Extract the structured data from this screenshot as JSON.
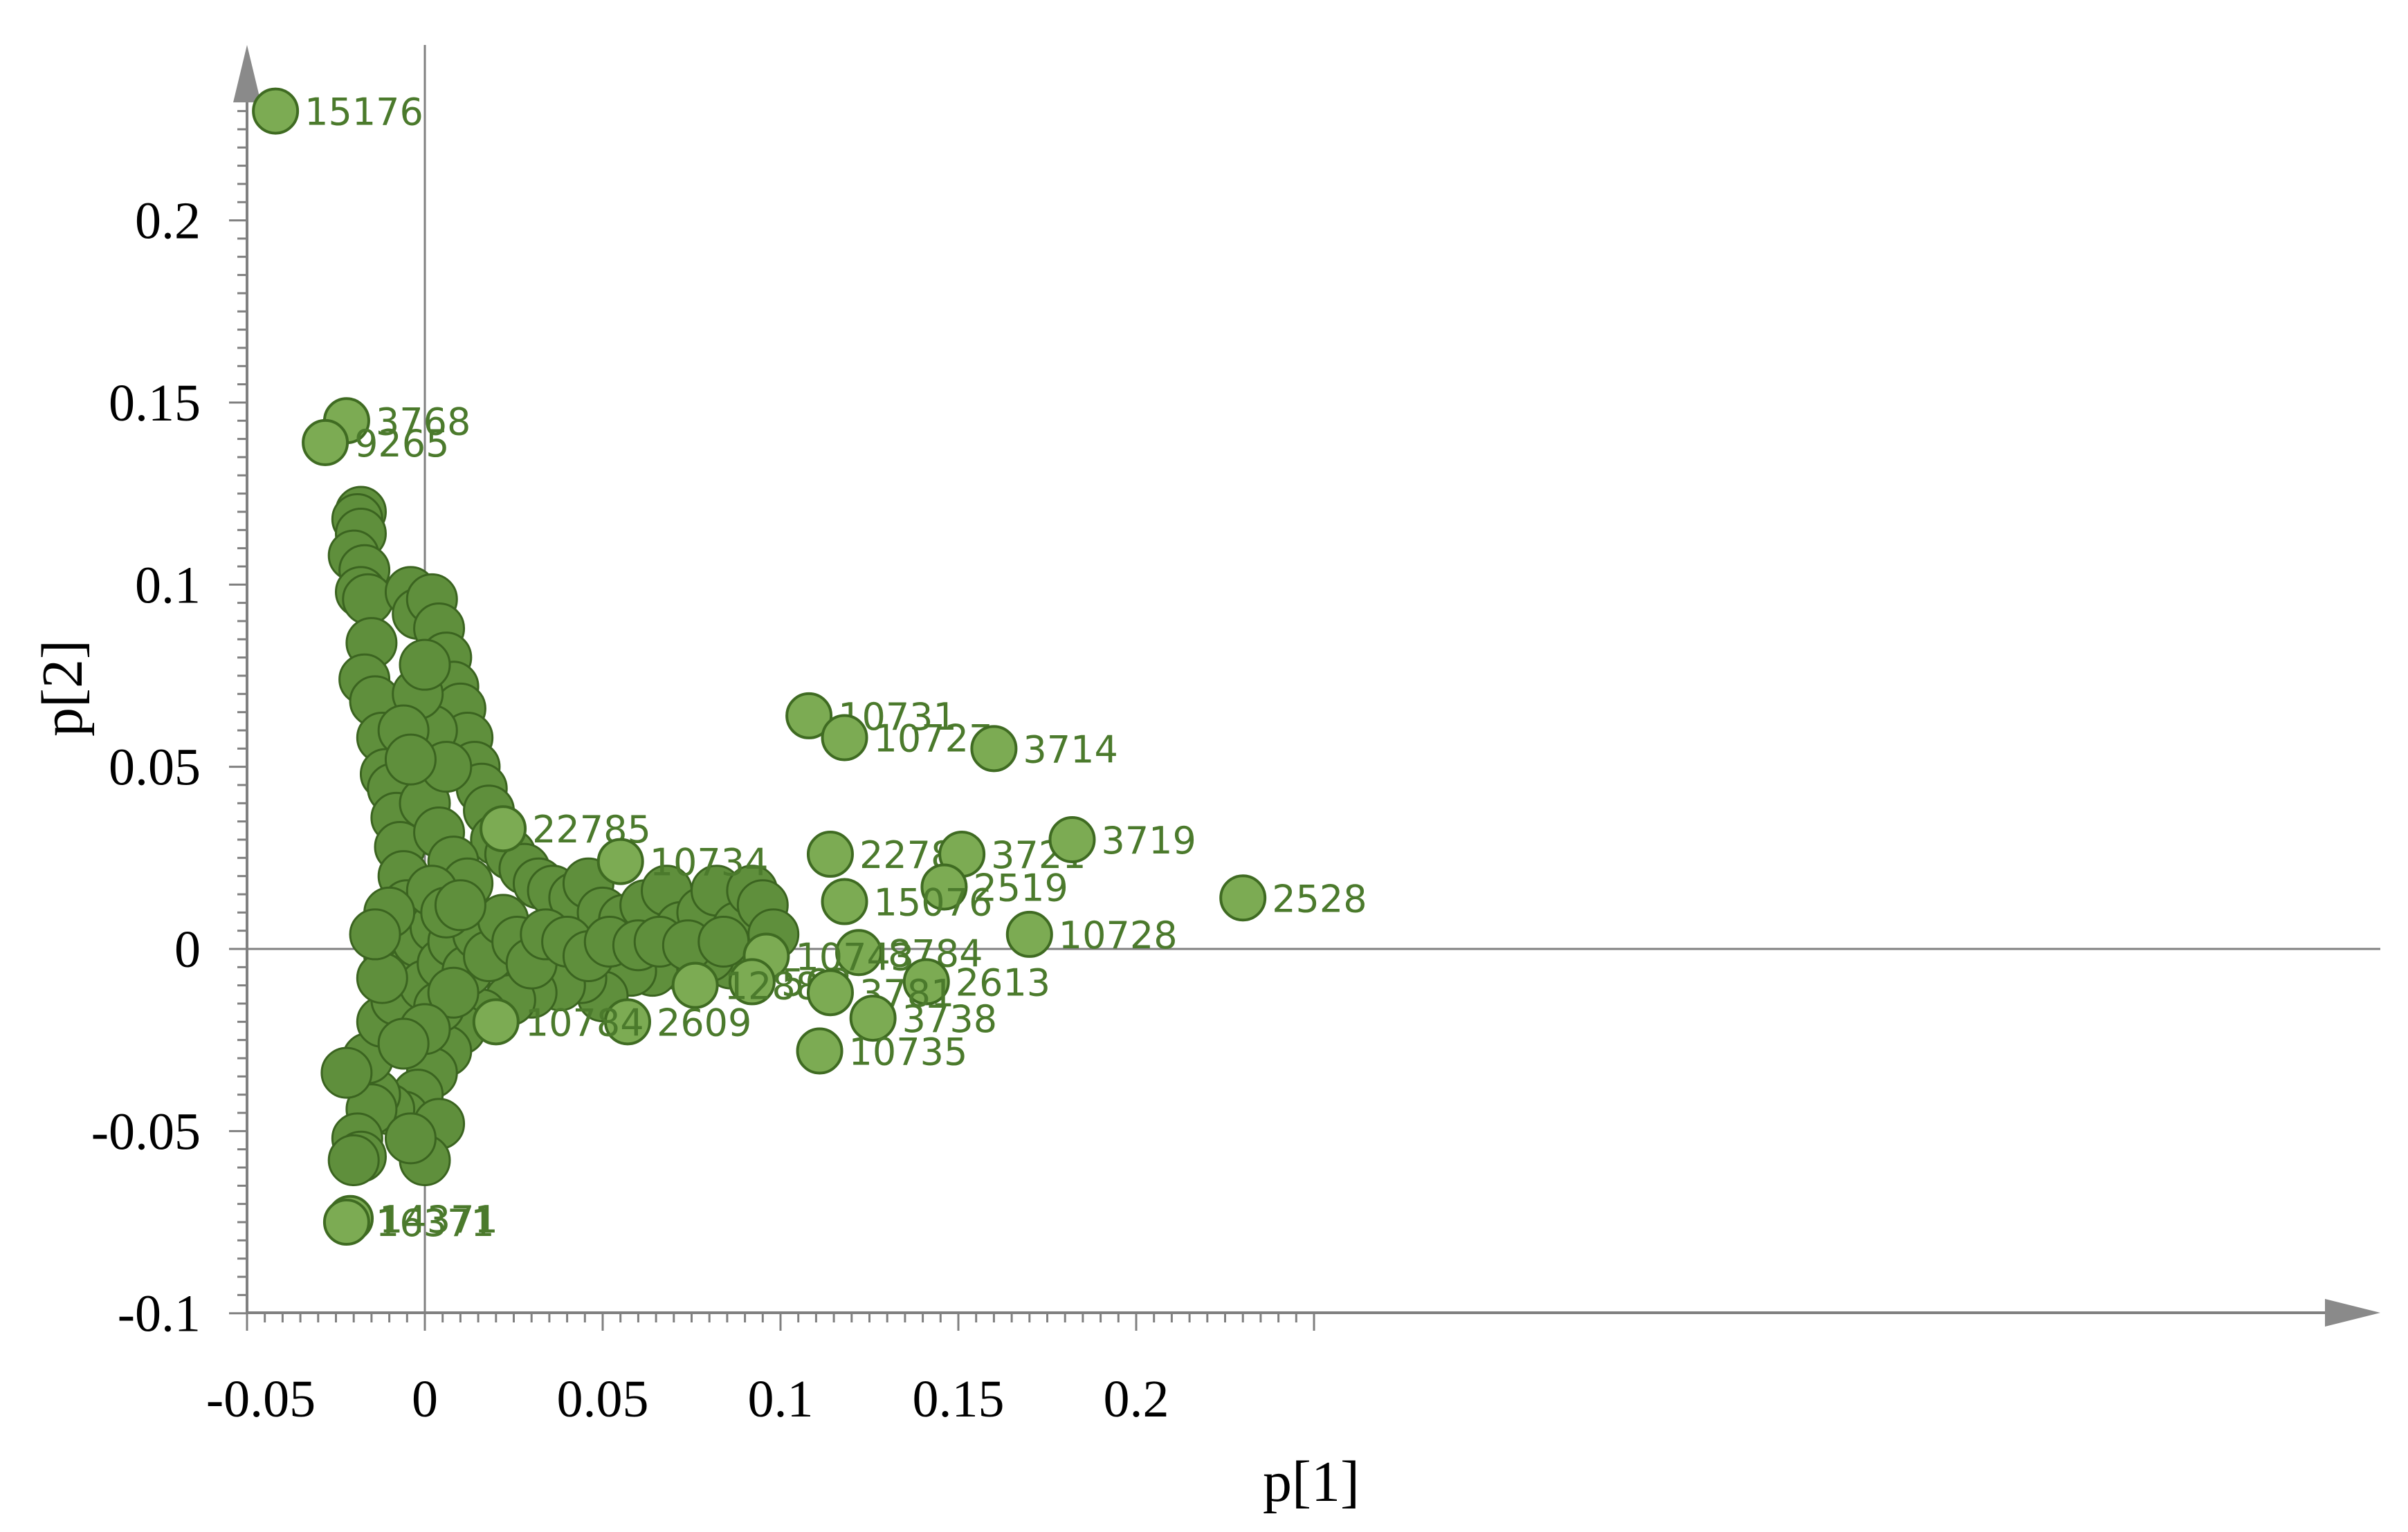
{
  "chart_data": {
    "type": "scatter",
    "xlabel": "p[1]",
    "ylabel": "p[2]",
    "xlim": [
      -0.05,
      0.25
    ],
    "ylim": [
      -0.1,
      0.24
    ],
    "xticks": [
      -0.05,
      0,
      0.05,
      0.1,
      0.15,
      0.2
    ],
    "yticks": [
      -0.1,
      -0.05,
      0,
      0.05,
      0.1,
      0.15,
      0.2
    ],
    "xtick_labels": [
      "-0.05",
      "0",
      "0.05",
      "0.1",
      "0.15",
      "0.2"
    ],
    "ytick_labels": [
      "-0.1",
      "-0.05",
      "0",
      "0.05",
      "0.1",
      "0.15",
      "0.2"
    ],
    "grid": false,
    "point_color": "#7cab53",
    "point_edge_color": "#3f6b22",
    "label_color": "#4b7a2c",
    "labeled_points": [
      {
        "label": "15176",
        "x": -0.042,
        "y": 0.23
      },
      {
        "label": "3768",
        "x": -0.022,
        "y": 0.145
      },
      {
        "label": "9265",
        "x": -0.028,
        "y": 0.139
      },
      {
        "label": "10731",
        "x": 0.108,
        "y": 0.064
      },
      {
        "label": "10727",
        "x": 0.118,
        "y": 0.058
      },
      {
        "label": "3714",
        "x": 0.16,
        "y": 0.055
      },
      {
        "label": "22785",
        "x": 0.022,
        "y": 0.033
      },
      {
        "label": "10734",
        "x": 0.055,
        "y": 0.024
      },
      {
        "label": "22787",
        "x": 0.114,
        "y": 0.026
      },
      {
        "label": "3721",
        "x": 0.151,
        "y": 0.026
      },
      {
        "label": "3719",
        "x": 0.182,
        "y": 0.03
      },
      {
        "label": "2519",
        "x": 0.146,
        "y": 0.017
      },
      {
        "label": "15076",
        "x": 0.118,
        "y": 0.013
      },
      {
        "label": "2528",
        "x": 0.23,
        "y": 0.014
      },
      {
        "label": "10728",
        "x": 0.17,
        "y": 0.004
      },
      {
        "label": "8784",
        "x": 0.122,
        "y": -0.001
      },
      {
        "label": "10743",
        "x": 0.096,
        "y": -0.002
      },
      {
        "label": "2613",
        "x": 0.141,
        "y": -0.009
      },
      {
        "label": "562",
        "x": 0.092,
        "y": -0.009
      },
      {
        "label": "12885",
        "x": 0.076,
        "y": -0.01
      },
      {
        "label": "3781",
        "x": 0.114,
        "y": -0.012
      },
      {
        "label": "3738",
        "x": 0.126,
        "y": -0.019
      },
      {
        "label": "2609",
        "x": 0.057,
        "y": -0.02
      },
      {
        "label": "10784",
        "x": 0.02,
        "y": -0.02
      },
      {
        "label": "10735",
        "x": 0.111,
        "y": -0.028
      },
      {
        "label": "14371",
        "x": -0.021,
        "y": -0.074
      },
      {
        "label": "16371",
        "x": -0.022,
        "y": -0.075
      }
    ],
    "unlabeled_points": [
      {
        "x": -0.018,
        "y": 0.12
      },
      {
        "x": -0.019,
        "y": 0.118
      },
      {
        "x": -0.018,
        "y": 0.114
      },
      {
        "x": -0.02,
        "y": 0.108
      },
      {
        "x": -0.017,
        "y": 0.104
      },
      {
        "x": -0.018,
        "y": 0.098
      },
      {
        "x": -0.016,
        "y": 0.096
      },
      {
        "x": -0.015,
        "y": 0.084
      },
      {
        "x": -0.017,
        "y": 0.074
      },
      {
        "x": -0.014,
        "y": 0.068
      },
      {
        "x": -0.012,
        "y": 0.058
      },
      {
        "x": -0.011,
        "y": 0.048
      },
      {
        "x": -0.009,
        "y": 0.044
      },
      {
        "x": -0.008,
        "y": 0.036
      },
      {
        "x": -0.007,
        "y": 0.028
      },
      {
        "x": -0.006,
        "y": 0.02
      },
      {
        "x": -0.005,
        "y": 0.012
      },
      {
        "x": -0.004,
        "y": 0.098
      },
      {
        "x": -0.002,
        "y": 0.092
      },
      {
        "x": 0.002,
        "y": 0.096
      },
      {
        "x": 0.004,
        "y": 0.088
      },
      {
        "x": 0.006,
        "y": 0.08
      },
      {
        "x": 0.008,
        "y": 0.072
      },
      {
        "x": 0.01,
        "y": 0.066
      },
      {
        "x": 0.012,
        "y": 0.058
      },
      {
        "x": 0.014,
        "y": 0.05
      },
      {
        "x": 0.016,
        "y": 0.044
      },
      {
        "x": 0.018,
        "y": 0.038
      },
      {
        "x": 0.02,
        "y": 0.03
      },
      {
        "x": 0.024,
        "y": 0.026
      },
      {
        "x": 0.028,
        "y": 0.022
      },
      {
        "x": 0.032,
        "y": 0.018
      },
      {
        "x": 0.036,
        "y": 0.016
      },
      {
        "x": 0.042,
        "y": 0.014
      },
      {
        "x": 0.046,
        "y": 0.018
      },
      {
        "x": 0.05,
        "y": 0.01
      },
      {
        "x": 0.056,
        "y": 0.008
      },
      {
        "x": 0.062,
        "y": 0.012
      },
      {
        "x": 0.068,
        "y": 0.016
      },
      {
        "x": 0.072,
        "y": 0.006
      },
      {
        "x": 0.078,
        "y": 0.01
      },
      {
        "x": 0.082,
        "y": 0.016
      },
      {
        "x": 0.088,
        "y": 0.006
      },
      {
        "x": 0.092,
        "y": 0.016
      },
      {
        "x": 0.095,
        "y": 0.012
      },
      {
        "x": 0.098,
        "y": 0.004
      },
      {
        "x": 0.086,
        "y": -0.004
      },
      {
        "x": 0.08,
        "y": -0.002
      },
      {
        "x": 0.07,
        "y": -0.004
      },
      {
        "x": 0.064,
        "y": -0.006
      },
      {
        "x": 0.058,
        "y": -0.006
      },
      {
        "x": 0.05,
        "y": -0.013
      },
      {
        "x": 0.044,
        "y": -0.008
      },
      {
        "x": 0.038,
        "y": -0.01
      },
      {
        "x": 0.03,
        "y": -0.012
      },
      {
        "x": 0.024,
        "y": -0.014
      },
      {
        "x": 0.016,
        "y": -0.018
      },
      {
        "x": 0.01,
        "y": -0.022
      },
      {
        "x": 0.006,
        "y": -0.028
      },
      {
        "x": 0.002,
        "y": -0.034
      },
      {
        "x": -0.002,
        "y": -0.04
      },
      {
        "x": -0.006,
        "y": -0.046
      },
      {
        "x": -0.01,
        "y": -0.044
      },
      {
        "x": -0.014,
        "y": -0.04
      },
      {
        "x": -0.015,
        "y": -0.044
      },
      {
        "x": -0.016,
        "y": -0.03
      },
      {
        "x": -0.019,
        "y": -0.052
      },
      {
        "x": -0.018,
        "y": -0.057
      },
      {
        "x": -0.02,
        "y": -0.058
      },
      {
        "x": -0.022,
        "y": -0.034
      },
      {
        "x": -0.012,
        "y": -0.02
      },
      {
        "x": -0.008,
        "y": -0.014
      },
      {
        "x": -0.01,
        "y": -0.002
      },
      {
        "x": -0.008,
        "y": 0.004
      },
      {
        "x": -0.004,
        "y": -0.006
      },
      {
        "x": -0.002,
        "y": 0.002
      },
      {
        "x": 0.0,
        "y": -0.01
      },
      {
        "x": 0.003,
        "y": 0.006
      },
      {
        "x": 0.005,
        "y": -0.004
      },
      {
        "x": 0.008,
        "y": 0.002
      },
      {
        "x": 0.012,
        "y": -0.006
      },
      {
        "x": 0.015,
        "y": 0.004
      },
      {
        "x": 0.018,
        "y": -0.002
      },
      {
        "x": 0.022,
        "y": 0.008
      },
      {
        "x": 0.026,
        "y": 0.002
      },
      {
        "x": 0.03,
        "y": -0.004
      },
      {
        "x": 0.034,
        "y": 0.004
      },
      {
        "x": 0.04,
        "y": 0.002
      },
      {
        "x": 0.046,
        "y": -0.002
      },
      {
        "x": 0.052,
        "y": 0.002
      },
      {
        "x": 0.06,
        "y": 0.001
      },
      {
        "x": 0.066,
        "y": 0.002
      },
      {
        "x": 0.074,
        "y": 0.001
      },
      {
        "x": 0.084,
        "y": 0.002
      },
      {
        "x": 0.0,
        "y": 0.04
      },
      {
        "x": 0.004,
        "y": 0.032
      },
      {
        "x": 0.002,
        "y": 0.06
      },
      {
        "x": 0.006,
        "y": 0.05
      },
      {
        "x": -0.002,
        "y": 0.07
      },
      {
        "x": 0.0,
        "y": 0.078
      },
      {
        "x": 0.008,
        "y": 0.024
      },
      {
        "x": 0.012,
        "y": 0.018
      },
      {
        "x": 0.002,
        "y": 0.016
      },
      {
        "x": 0.006,
        "y": 0.01
      },
      {
        "x": 0.01,
        "y": 0.012
      },
      {
        "x": -0.006,
        "y": 0.06
      },
      {
        "x": -0.004,
        "y": 0.052
      },
      {
        "x": 0.004,
        "y": -0.016
      },
      {
        "x": 0.008,
        "y": -0.012
      },
      {
        "x": 0.0,
        "y": -0.022
      },
      {
        "x": -0.006,
        "y": -0.026
      },
      {
        "x": 0.004,
        "y": -0.048
      },
      {
        "x": 0.0,
        "y": -0.058
      },
      {
        "x": -0.004,
        "y": -0.052
      },
      {
        "x": -0.012,
        "y": -0.008
      },
      {
        "x": -0.01,
        "y": 0.01
      },
      {
        "x": -0.014,
        "y": 0.004
      }
    ]
  }
}
